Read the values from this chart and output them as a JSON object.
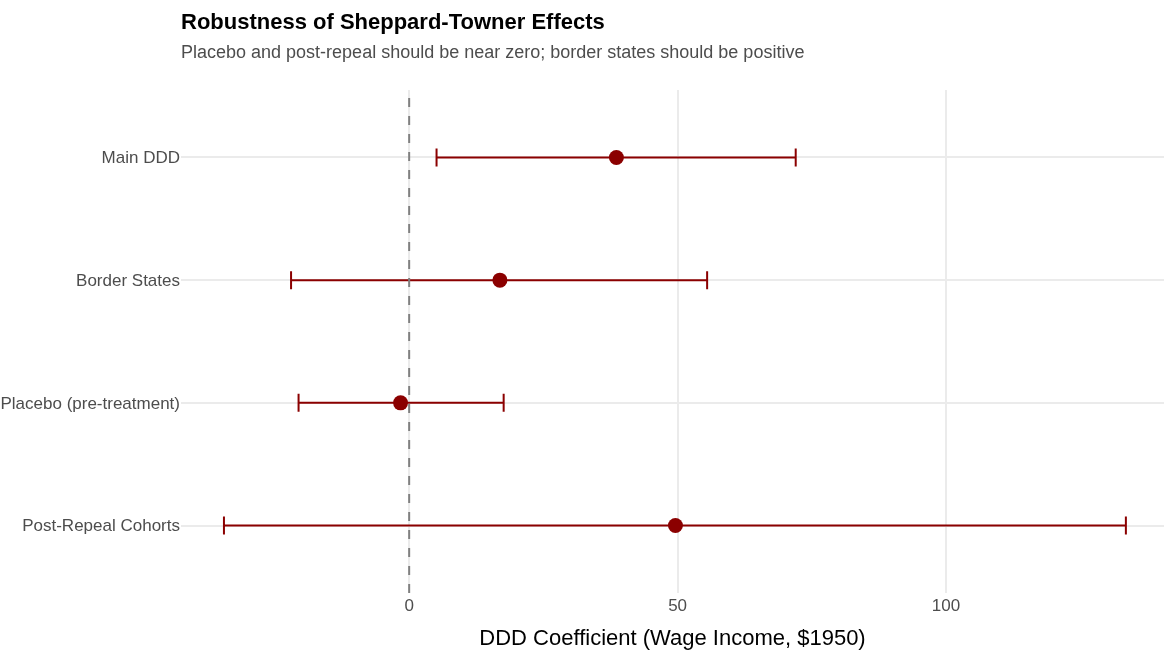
{
  "chart_data": {
    "type": "scatter",
    "orientation": "horizontal",
    "title": "Robustness of Sheppard-Towner Effects",
    "subtitle": "Placebo and post-repeal should be near zero; border states should be positive",
    "xlabel": "DDD Coefficient (Wage Income, $1950)",
    "categories": [
      "Main DDD",
      "Border States",
      "Placebo (pre-treatment)",
      "Post-Repeal Cohorts"
    ],
    "values": [
      38.6,
      16.9,
      -1.6,
      49.6
    ],
    "errors": [
      [
        5.1,
        72.0
      ],
      [
        -22.0,
        55.5
      ],
      [
        -20.6,
        17.6
      ],
      [
        -34.5,
        133.5
      ]
    ],
    "color": "#8b0000",
    "marker": "circle",
    "xlim": [
      -42.5,
      140.6
    ],
    "xticks": [
      0,
      50,
      100
    ],
    "ref_lines": [
      {
        "axis": "x",
        "value": 0,
        "color": "#808080",
        "line_style": "dashed"
      }
    ],
    "grid": true
  }
}
